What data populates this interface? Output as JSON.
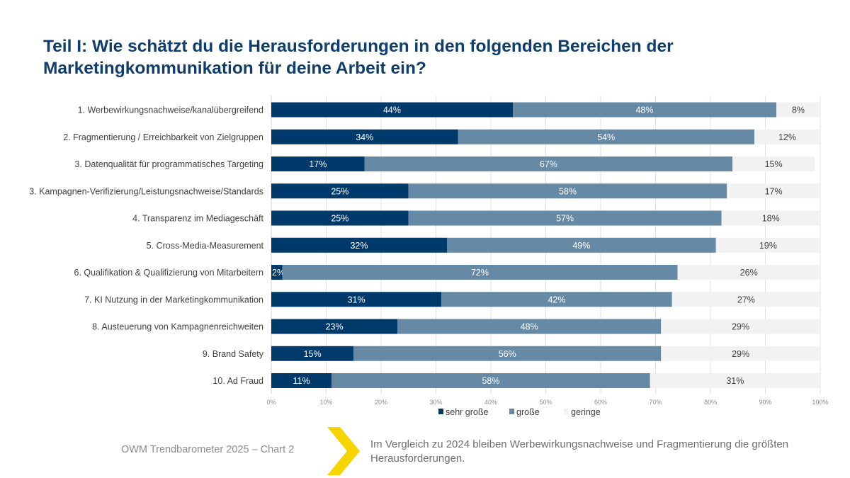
{
  "title": "Teil I: Wie schätzt du die Herausforderungen in den folgenden Bereichen der Marketingkommunikation für deine Arbeit ein?",
  "footer": {
    "source": "OWM Trendbarometer 2025 – Chart 2",
    "chevron_icon": "chevron-right-icon",
    "accent_color": "#f5d400",
    "note": "Im Vergleich zu 2024 bleiben Werbewirkungsnachweise und Fragmentierung die größten Herausforderungen."
  },
  "chart_data": {
    "type": "bar",
    "orientation": "horizontal",
    "stacked": "percent",
    "title": "Teil I: Wie schätzt du die Herausforderungen in den folgenden Bereichen der Marketingkommunikation für deine Arbeit ein?",
    "xlabel": "",
    "ylabel": "",
    "xlim": [
      0,
      100
    ],
    "x_ticks": [
      "0%",
      "10%",
      "20%",
      "30%",
      "40%",
      "50%",
      "60%",
      "70%",
      "80%",
      "90%",
      "100%"
    ],
    "grid": true,
    "legend_position": "bottom",
    "categories": [
      "1. Werbewirkungsnachweise/kanalübergreifend",
      "2. Fragmentierung / Erreichbarkeit von Zielgruppen",
      "3. Datenqualität für programmatisches Targeting",
      "3. Kampagnen-Verifizierung/Leistungsnachweise/Standards",
      "4. Transparenz im Mediageschäft",
      "5. Cross-Media-Measurement",
      "6. Qualifikation & Qualifizierung von Mitarbeitern",
      "7. KI Nutzung in der Marketingkommunikation",
      "8. Austeuerung von Kampagnenreichweiten",
      "9. Brand Safety",
      "10. Ad Fraud"
    ],
    "series": [
      {
        "name": "sehr große",
        "color": "#003a6b",
        "label_color": "#ffffff",
        "values": [
          44,
          34,
          17,
          25,
          25,
          32,
          2,
          31,
          23,
          15,
          11
        ]
      },
      {
        "name": "große",
        "color": "#6689a6",
        "label_color": "#ffffff",
        "values": [
          48,
          54,
          67,
          58,
          57,
          49,
          72,
          42,
          48,
          56,
          58
        ]
      },
      {
        "name": "geringe",
        "color": "#f2f2f2",
        "label_color": "#404040",
        "values": [
          8,
          12,
          15,
          17,
          18,
          19,
          26,
          27,
          29,
          29,
          31
        ]
      }
    ]
  }
}
